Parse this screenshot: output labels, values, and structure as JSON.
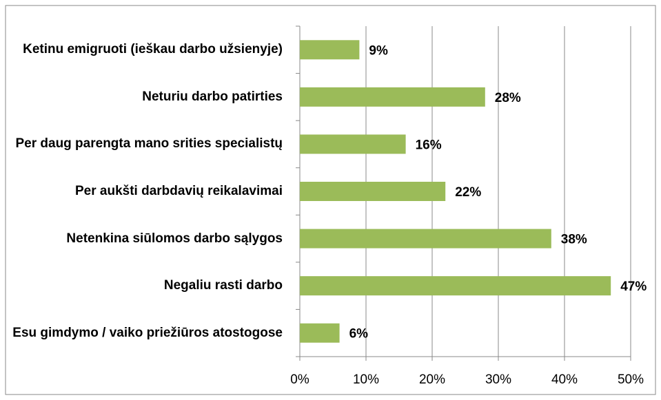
{
  "chart_data": {
    "type": "bar",
    "orientation": "horizontal",
    "categories": [
      "Ketinu emigruoti (ieškau darbo užsienyje)",
      "Neturiu darbo patirties",
      "Per daug parengta mano srities specialistų",
      "Per aukšti darbdavių reikalavimai",
      "Netenkina siūlomos darbo sąlygos",
      "Negaliu rasti darbo",
      "Esu gimdymo / vaiko priežiūros atostogose"
    ],
    "values": [
      9,
      28,
      16,
      22,
      38,
      47,
      6
    ],
    "value_labels": [
      "9%",
      "28%",
      "16%",
      "22%",
      "38%",
      "47%",
      "6%"
    ],
    "color": "#9bbb59",
    "xlim": [
      0,
      50
    ],
    "xticks": [
      {
        "value": 0,
        "label": "0%"
      },
      {
        "value": 10,
        "label": "10%"
      },
      {
        "value": 20,
        "label": "20%"
      },
      {
        "value": 30,
        "label": "30%"
      },
      {
        "value": 40,
        "label": "40%"
      },
      {
        "value": 50,
        "label": "50%"
      }
    ],
    "grid": true
  }
}
